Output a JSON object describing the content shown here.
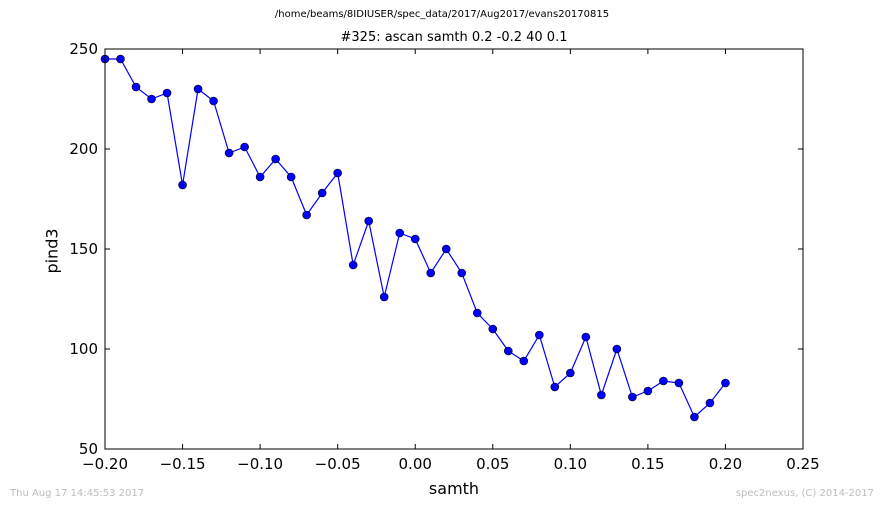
{
  "suptitle": "/home/beams/8IDIUSER/spec_data/2017/Aug2017/evans20170815",
  "footer": {
    "timestamp": "Thu Aug 17 14:45:53 2017",
    "credit": "spec2nexus, (C) 2014-2017"
  },
  "colors": {
    "series": "#0000ff",
    "frame": "#000000",
    "footer": "#bdbdbd"
  },
  "chart_data": {
    "type": "line",
    "title": "#325: ascan  samth 0.2 -0.2  40 0.1",
    "xlabel": "samth",
    "ylabel": "pind3",
    "xlim": [
      -0.2,
      0.25
    ],
    "ylim": [
      50,
      250
    ],
    "grid": false,
    "x_ticks": [
      "−0.20",
      "−0.15",
      "−0.10",
      "−0.05",
      "0.00",
      "0.05",
      "0.10",
      "0.15",
      "0.20",
      "0.25"
    ],
    "x_tick_values": [
      -0.2,
      -0.15,
      -0.1,
      -0.05,
      0.0,
      0.05,
      0.1,
      0.15,
      0.2,
      0.25
    ],
    "y_ticks": [
      "50",
      "100",
      "150",
      "200",
      "250"
    ],
    "y_tick_values": [
      50,
      100,
      150,
      200,
      250
    ],
    "series": [
      {
        "marker": "circle",
        "x": [
          -0.2,
          -0.19,
          -0.18,
          -0.17,
          -0.16,
          -0.15,
          -0.14,
          -0.13,
          -0.12,
          -0.11,
          -0.1,
          -0.09,
          -0.08,
          -0.07,
          -0.06,
          -0.05,
          -0.04,
          -0.03,
          -0.02,
          -0.01,
          0.0,
          0.01,
          0.02,
          0.03,
          0.04,
          0.05,
          0.06,
          0.07,
          0.08,
          0.09,
          0.1,
          0.11,
          0.12,
          0.13,
          0.14,
          0.15,
          0.16,
          0.17,
          0.18,
          0.19,
          0.2
        ],
        "y": [
          245,
          245,
          231,
          225,
          228,
          182,
          230,
          224,
          198,
          201,
          186,
          195,
          186,
          167,
          178,
          188,
          142,
          164,
          126,
          158,
          155,
          138,
          150,
          138,
          118,
          110,
          99,
          94,
          107,
          81,
          88,
          106,
          77,
          100,
          76,
          79,
          84,
          83,
          66,
          73,
          83
        ]
      }
    ]
  }
}
